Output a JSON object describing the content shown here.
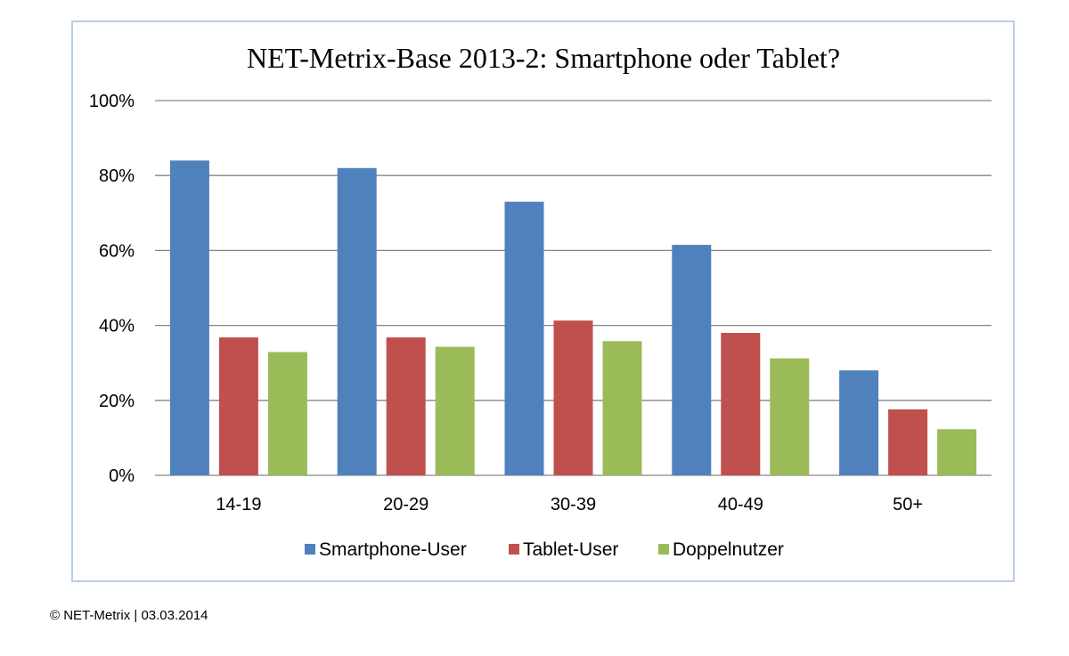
{
  "chart_data": {
    "type": "bar",
    "title": "NET-Metrix-Base 2013-2: Smartphone oder Tablet?",
    "categories": [
      "14-19",
      "20-29",
      "30-39",
      "40-49",
      "50+"
    ],
    "series": [
      {
        "name": "Smartphone-User",
        "color": "#4f81bd",
        "values": [
          84,
          82,
          73,
          61.5,
          28
        ]
      },
      {
        "name": "Tablet-User",
        "color": "#c0504d",
        "values": [
          36.8,
          36.8,
          41.3,
          38,
          17.6
        ]
      },
      {
        "name": "Doppelnutzer",
        "color": "#9bbb59",
        "values": [
          32.9,
          34.3,
          35.8,
          31.2,
          12.3
        ]
      }
    ],
    "ylim": [
      0,
      100
    ],
    "yticks": [
      "0%",
      "20%",
      "40%",
      "60%",
      "80%",
      "100%"
    ],
    "ytick_values": [
      0,
      20,
      40,
      60,
      80,
      100
    ],
    "grid": true,
    "legend": "bottom"
  },
  "footer": "© NET-Metrix | 03.03.2014"
}
